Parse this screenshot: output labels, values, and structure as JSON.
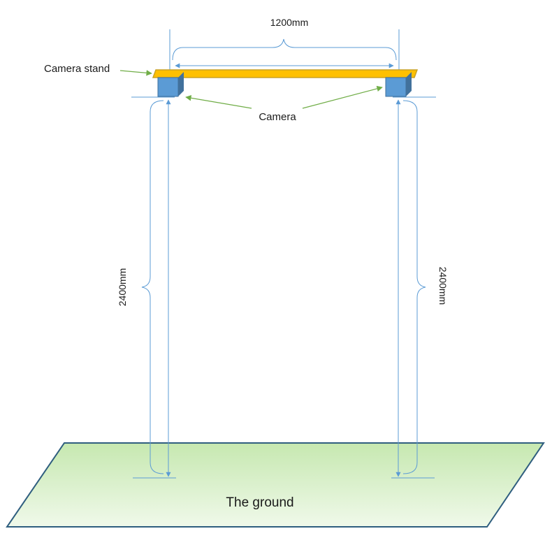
{
  "labels": {
    "width_dimension": "1200mm",
    "camera_stand": "Camera stand",
    "camera": "Camera",
    "height_left": "2400mm",
    "height_right": "2400mm",
    "ground": "The ground"
  },
  "colors": {
    "stand_fill": "#ffc000",
    "stand_stroke": "#c9a227",
    "camera_front": "#5b9bd5",
    "camera_side": "#41719c",
    "dimension_line": "#5b9bd5",
    "ground_fill_top": "#c6e8b0",
    "ground_fill_bottom": "#f0f9ea",
    "ground_stroke": "#2f5e7f",
    "pointer_arrow": "#70ad47"
  }
}
